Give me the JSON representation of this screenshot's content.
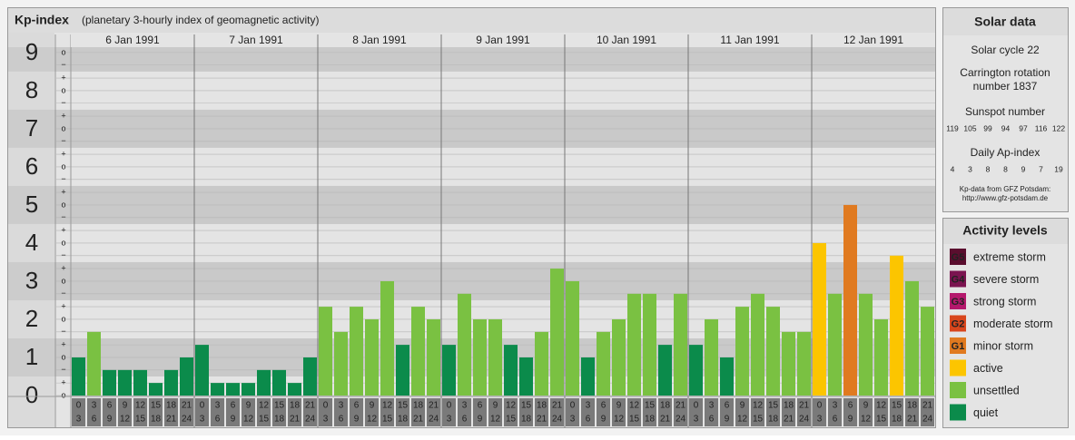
{
  "chart_data": {
    "type": "bar",
    "title": "Kp-index",
    "subtitle": "(planetary 3-hourly index of geomagnetic activity)",
    "ylim": [
      0,
      9.14
    ],
    "yticks": [
      0,
      1,
      2,
      3,
      4,
      5,
      6,
      7,
      8,
      9
    ],
    "minor_yticks": [
      {
        "value": 9,
        "label": "o"
      },
      {
        "value": 8.67,
        "label": "−"
      },
      {
        "value": 8.33,
        "label": "+"
      },
      {
        "value": 8,
        "label": "o"
      },
      {
        "value": 7.67,
        "label": "−"
      },
      {
        "value": 7.33,
        "label": "+"
      },
      {
        "value": 7,
        "label": "o"
      },
      {
        "value": 6.67,
        "label": "−"
      },
      {
        "value": 6.33,
        "label": "+"
      },
      {
        "value": 6,
        "label": "o"
      },
      {
        "value": 5.67,
        "label": "−"
      },
      {
        "value": 5.33,
        "label": "+"
      },
      {
        "value": 5,
        "label": "o"
      },
      {
        "value": 4.67,
        "label": "−"
      },
      {
        "value": 4.33,
        "label": "+"
      },
      {
        "value": 4,
        "label": "o"
      },
      {
        "value": 3.67,
        "label": "−"
      },
      {
        "value": 3.33,
        "label": "+"
      },
      {
        "value": 3,
        "label": "o"
      },
      {
        "value": 2.67,
        "label": "−"
      },
      {
        "value": 2.33,
        "label": "+"
      },
      {
        "value": 2,
        "label": "o"
      },
      {
        "value": 1.67,
        "label": "−"
      },
      {
        "value": 1.33,
        "label": "+"
      },
      {
        "value": 1,
        "label": "o"
      },
      {
        "value": 0.67,
        "label": "−"
      },
      {
        "value": 0.33,
        "label": "+"
      },
      {
        "value": 0,
        "label": "o"
      }
    ],
    "grid": true,
    "slots": [
      {
        "start": "0",
        "end": "3"
      },
      {
        "start": "3",
        "end": "6"
      },
      {
        "start": "6",
        "end": "9"
      },
      {
        "start": "9",
        "end": "12"
      },
      {
        "start": "12",
        "end": "15"
      },
      {
        "start": "15",
        "end": "18"
      },
      {
        "start": "18",
        "end": "21"
      },
      {
        "start": "21",
        "end": "24"
      }
    ],
    "days": [
      {
        "label": "6 Jan 1991",
        "values": [
          1,
          1.67,
          0.67,
          0.67,
          0.67,
          0.33,
          0.67,
          1
        ],
        "colors": [
          "#0b8b4b",
          "#7ac142",
          "#0b8b4b",
          "#0b8b4b",
          "#0b8b4b",
          "#0b8b4b",
          "#0b8b4b",
          "#0b8b4b"
        ]
      },
      {
        "label": "7 Jan 1991",
        "values": [
          1.33,
          0.33,
          0.33,
          0.33,
          0.67,
          0.67,
          0.33,
          1
        ],
        "colors": [
          "#0b8b4b",
          "#0b8b4b",
          "#0b8b4b",
          "#0b8b4b",
          "#0b8b4b",
          "#0b8b4b",
          "#0b8b4b",
          "#0b8b4b"
        ]
      },
      {
        "label": "8 Jan 1991",
        "values": [
          2.33,
          1.67,
          2.33,
          2,
          3,
          1.33,
          2.33,
          2
        ],
        "colors": [
          "#7ac142",
          "#7ac142",
          "#7ac142",
          "#7ac142",
          "#7ac142",
          "#0b8b4b",
          "#7ac142",
          "#7ac142"
        ]
      },
      {
        "label": "9 Jan 1991",
        "values": [
          1.33,
          2.67,
          2,
          2,
          1.33,
          1,
          1.67,
          3.33
        ],
        "colors": [
          "#0b8b4b",
          "#7ac142",
          "#7ac142",
          "#7ac142",
          "#0b8b4b",
          "#0b8b4b",
          "#7ac142",
          "#7ac142"
        ]
      },
      {
        "label": "10 Jan 1991",
        "values": [
          3,
          1,
          1.67,
          2,
          2.67,
          2.67,
          1.33,
          2.67
        ],
        "colors": [
          "#7ac142",
          "#0b8b4b",
          "#7ac142",
          "#7ac142",
          "#7ac142",
          "#7ac142",
          "#0b8b4b",
          "#7ac142"
        ]
      },
      {
        "label": "11 Jan 1991",
        "values": [
          1.33,
          2,
          1,
          2.33,
          2.67,
          2.33,
          1.67,
          1.67
        ],
        "colors": [
          "#0b8b4b",
          "#7ac142",
          "#0b8b4b",
          "#7ac142",
          "#7ac142",
          "#7ac142",
          "#7ac142",
          "#7ac142"
        ]
      },
      {
        "label": "12 Jan 1991",
        "values": [
          4,
          2.67,
          5,
          2.67,
          2,
          3.67,
          3,
          2.33
        ],
        "colors": [
          "#fcc500",
          "#7ac142",
          "#e07a20",
          "#7ac142",
          "#7ac142",
          "#fcc500",
          "#7ac142",
          "#7ac142"
        ]
      }
    ]
  },
  "solar_data": {
    "title": "Solar data",
    "cycle": "Solar cycle 22",
    "carrington_1": "Carrington rotation",
    "carrington_2": "number 1837",
    "sunspot_title": "Sunspot number",
    "sunspot": [
      119,
      105,
      99,
      94,
      97,
      116,
      122
    ],
    "ap_title": "Daily Ap-index",
    "ap": [
      4,
      3,
      8,
      8,
      9,
      7,
      19
    ],
    "source_1": "Kp-data from GFZ Potsdam:",
    "source_2": "http://www.gfz-potsdam.de"
  },
  "activity_levels": {
    "title": "Activity levels",
    "items": [
      {
        "badge": "G5",
        "label": "extreme storm",
        "color": "#5a0e2e"
      },
      {
        "badge": "G4",
        "label": "severe storm",
        "color": "#7b1450"
      },
      {
        "badge": "G3",
        "label": "strong storm",
        "color": "#b4186c"
      },
      {
        "badge": "G2",
        "label": "moderate storm",
        "color": "#d8461c"
      },
      {
        "badge": "G1",
        "label": "minor storm",
        "color": "#e07a20"
      },
      {
        "label": "active",
        "color": "#fcc500"
      },
      {
        "label": "unsettled",
        "color": "#7ac142"
      },
      {
        "label": "quiet",
        "color": "#0b8b4b"
      }
    ]
  }
}
